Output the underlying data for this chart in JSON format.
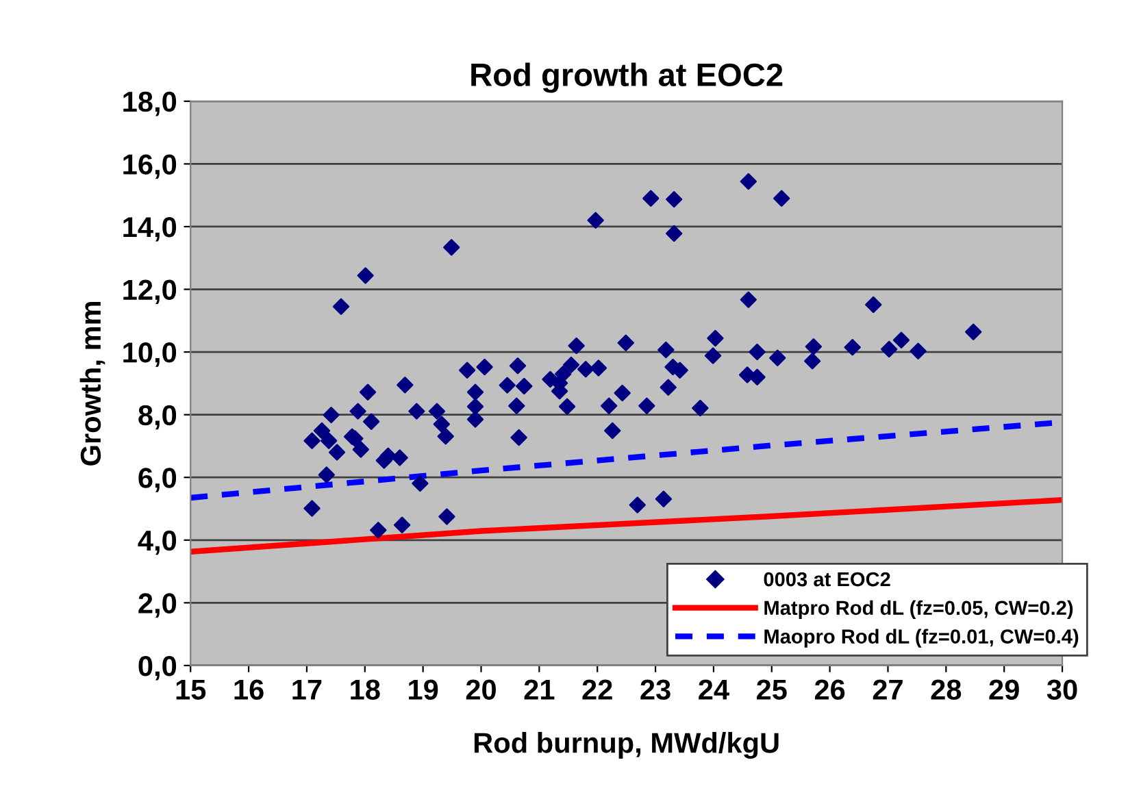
{
  "chart_data": {
    "type": "scatter",
    "title": "Rod growth at EOC2",
    "xlabel": "Rod burnup, MWd/kgU",
    "ylabel": "Growth, mm",
    "xlim": [
      15,
      30
    ],
    "xticks": [
      15,
      16,
      17,
      18,
      19,
      20,
      21,
      22,
      23,
      24,
      25,
      26,
      27,
      28,
      29,
      30
    ],
    "ylim": [
      0,
      18
    ],
    "yticks": [
      {
        "value": 0,
        "label": "0,0"
      },
      {
        "value": 2,
        "label": "2,0"
      },
      {
        "value": 4,
        "label": "4,0"
      },
      {
        "value": 6,
        "label": "6,0"
      },
      {
        "value": 8,
        "label": "8,0"
      },
      {
        "value": 10,
        "label": "10,0"
      },
      {
        "value": 12,
        "label": "12,0"
      },
      {
        "value": 14,
        "label": "14,0"
      },
      {
        "value": 16,
        "label": "16,0"
      },
      {
        "value": 18,
        "label": "18,0"
      }
    ],
    "grid": "y",
    "legend": "bottom right",
    "series": [
      {
        "name": "0003 at EOC2",
        "marker": "diamond",
        "color": "#000080",
        "x": [
          17.09,
          17.09,
          17.26,
          17.34,
          17.38,
          17.42,
          17.52,
          17.59,
          17.78,
          17.83,
          17.88,
          17.93,
          18.01,
          18.05,
          18.11,
          18.23,
          18.33,
          18.4,
          18.6,
          18.64,
          18.69,
          18.89,
          18.95,
          19.24,
          19.32,
          19.39,
          19.41,
          19.49,
          19.76,
          19.9,
          19.9,
          19.9,
          20.06,
          20.45,
          20.63,
          20.61,
          20.74,
          20.65,
          21.19,
          21.35,
          21.41,
          21.35,
          21.55,
          21.48,
          21.64,
          21.8,
          22.02,
          21.97,
          22.2,
          22.26,
          22.43,
          22.49,
          22.69,
          22.85,
          22.92,
          23.14,
          23.18,
          23.22,
          23.32,
          23.32,
          23.3,
          23.42,
          23.77,
          23.99,
          24.03,
          24.6,
          24.6,
          24.58,
          24.75,
          24.75,
          25.17,
          25.1,
          25.72,
          25.7,
          26.39,
          26.75,
          27.02,
          27.23,
          27.52,
          28.47
        ],
        "values": [
          7.17,
          5.01,
          7.49,
          6.08,
          7.17,
          7.99,
          6.8,
          11.45,
          7.3,
          7.24,
          8.11,
          6.89,
          12.44,
          8.72,
          7.78,
          4.32,
          6.54,
          6.69,
          6.63,
          4.48,
          8.95,
          8.11,
          5.81,
          8.11,
          7.7,
          7.31,
          4.75,
          13.34,
          9.42,
          8.72,
          8.26,
          7.85,
          9.52,
          8.94,
          9.56,
          8.28,
          8.91,
          7.27,
          9.13,
          9.01,
          9.3,
          8.75,
          9.59,
          8.26,
          10.2,
          9.45,
          9.49,
          14.2,
          8.28,
          7.49,
          8.69,
          10.29,
          5.12,
          8.28,
          14.9,
          5.31,
          10.07,
          8.87,
          14.87,
          13.78,
          9.52,
          9.42,
          8.21,
          9.88,
          10.44,
          15.44,
          11.67,
          9.27,
          9.2,
          10.0,
          14.9,
          9.81,
          10.17,
          9.71,
          10.15,
          11.51,
          10.09,
          10.38,
          10.03,
          10.64
        ]
      },
      {
        "name": "Matpro Rod dL (fz=0.05, CW=0.2)",
        "type": "line",
        "line_style": "solid",
        "color": "#ff0000",
        "x": [
          15,
          20,
          25,
          30
        ],
        "values": [
          3.63,
          4.29,
          4.76,
          5.28
        ]
      },
      {
        "name": "Maopro Rod dL (fz=0.01, CW=0.4)",
        "type": "line",
        "line_style": "dashed",
        "color": "#0000ff",
        "x": [
          15,
          20,
          25,
          30
        ],
        "values": [
          5.35,
          6.22,
          7.02,
          7.76
        ]
      }
    ]
  }
}
